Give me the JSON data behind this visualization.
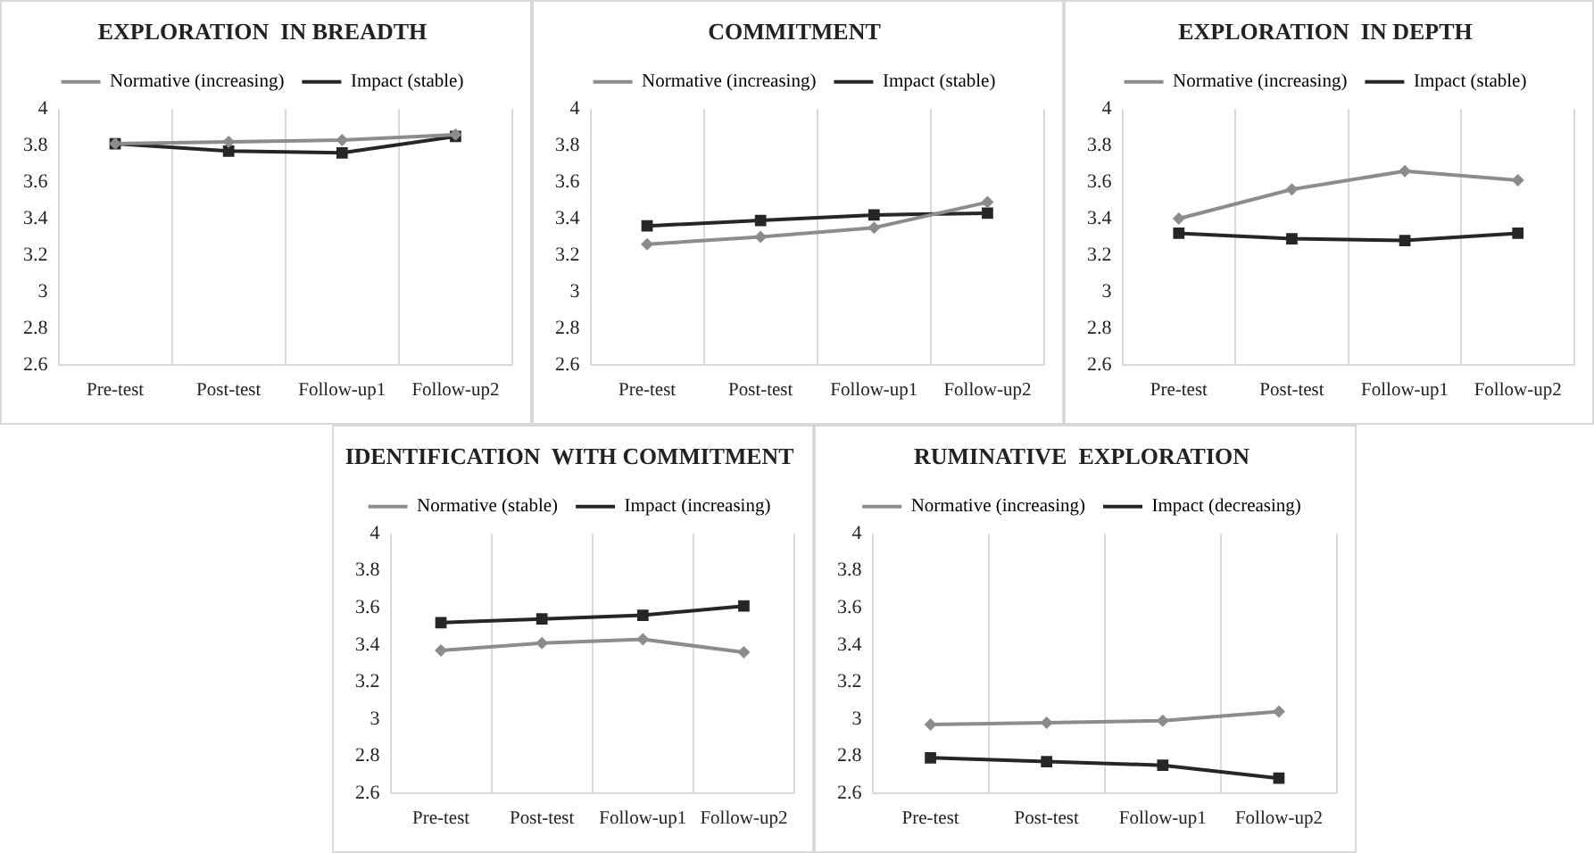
{
  "chart_data": [
    {
      "type": "line",
      "title": "EXPLORATION  IN BREADTH",
      "categories": [
        "Pre-test",
        "Post-test",
        "Follow-up1",
        "Follow-up2"
      ],
      "ylim": [
        2.6,
        4
      ],
      "yticks": [
        2.6,
        2.8,
        3,
        3.2,
        3.4,
        3.6,
        3.8,
        4
      ],
      "grid": "x",
      "legend": "top",
      "series": [
        {
          "name": "Normative (increasing)",
          "color": "#8c8c8c",
          "marker": "diamond",
          "values": [
            3.81,
            3.82,
            3.83,
            3.86
          ]
        },
        {
          "name": "Impact (stable)",
          "color": "#262626",
          "marker": "square",
          "values": [
            3.81,
            3.77,
            3.76,
            3.85
          ]
        }
      ]
    },
    {
      "type": "line",
      "title": "COMMITMENT",
      "categories": [
        "Pre-test",
        "Post-test",
        "Follow-up1",
        "Follow-up2"
      ],
      "ylim": [
        2.6,
        4
      ],
      "yticks": [
        2.6,
        2.8,
        3,
        3.2,
        3.4,
        3.6,
        3.8,
        4
      ],
      "grid": "x",
      "legend": "top",
      "series": [
        {
          "name": "Normative (increasing)",
          "color": "#8c8c8c",
          "marker": "diamond",
          "values": [
            3.26,
            3.3,
            3.35,
            3.49
          ]
        },
        {
          "name": "Impact (stable)",
          "color": "#262626",
          "marker": "square",
          "values": [
            3.36,
            3.39,
            3.42,
            3.43
          ]
        }
      ]
    },
    {
      "type": "line",
      "title": "EXPLORATION  IN DEPTH",
      "categories": [
        "Pre-test",
        "Post-test",
        "Follow-up1",
        "Follow-up2"
      ],
      "ylim": [
        2.6,
        4
      ],
      "yticks": [
        2.6,
        2.8,
        3,
        3.2,
        3.4,
        3.6,
        3.8,
        4
      ],
      "grid": "x",
      "legend": "top",
      "series": [
        {
          "name": "Normative (increasing)",
          "color": "#8c8c8c",
          "marker": "diamond",
          "values": [
            3.4,
            3.56,
            3.66,
            3.61
          ]
        },
        {
          "name": "Impact (stable)",
          "color": "#262626",
          "marker": "square",
          "values": [
            3.32,
            3.29,
            3.28,
            3.32
          ]
        }
      ]
    },
    {
      "type": "line",
      "title": "IDENTIFICATION  WITH COMMITMENT",
      "categories": [
        "Pre-test",
        "Post-test",
        "Follow-up1",
        "Follow-up2"
      ],
      "ylim": [
        2.6,
        4
      ],
      "yticks": [
        2.6,
        2.8,
        3,
        3.2,
        3.4,
        3.6,
        3.8,
        4
      ],
      "grid": "x",
      "legend": "top",
      "series": [
        {
          "name": "Normative (stable)",
          "color": "#8c8c8c",
          "marker": "diamond",
          "values": [
            3.37,
            3.41,
            3.43,
            3.36
          ]
        },
        {
          "name": "Impact (increasing)",
          "color": "#262626",
          "marker": "square",
          "values": [
            3.52,
            3.54,
            3.56,
            3.61
          ]
        }
      ]
    },
    {
      "type": "line",
      "title": "RUMINATIVE  EXPLORATION",
      "categories": [
        "Pre-test",
        "Post-test",
        "Follow-up1",
        "Follow-up2"
      ],
      "ylim": [
        2.6,
        4
      ],
      "yticks": [
        2.6,
        2.8,
        3,
        3.2,
        3.4,
        3.6,
        3.8,
        4
      ],
      "grid": "x",
      "legend": "top",
      "series": [
        {
          "name": "Normative (increasing)",
          "color": "#8c8c8c",
          "marker": "diamond",
          "values": [
            2.97,
            2.98,
            2.99,
            3.04
          ]
        },
        {
          "name": "Impact (decreasing)",
          "color": "#262626",
          "marker": "square",
          "values": [
            2.79,
            2.77,
            2.75,
            2.68
          ]
        }
      ]
    }
  ]
}
